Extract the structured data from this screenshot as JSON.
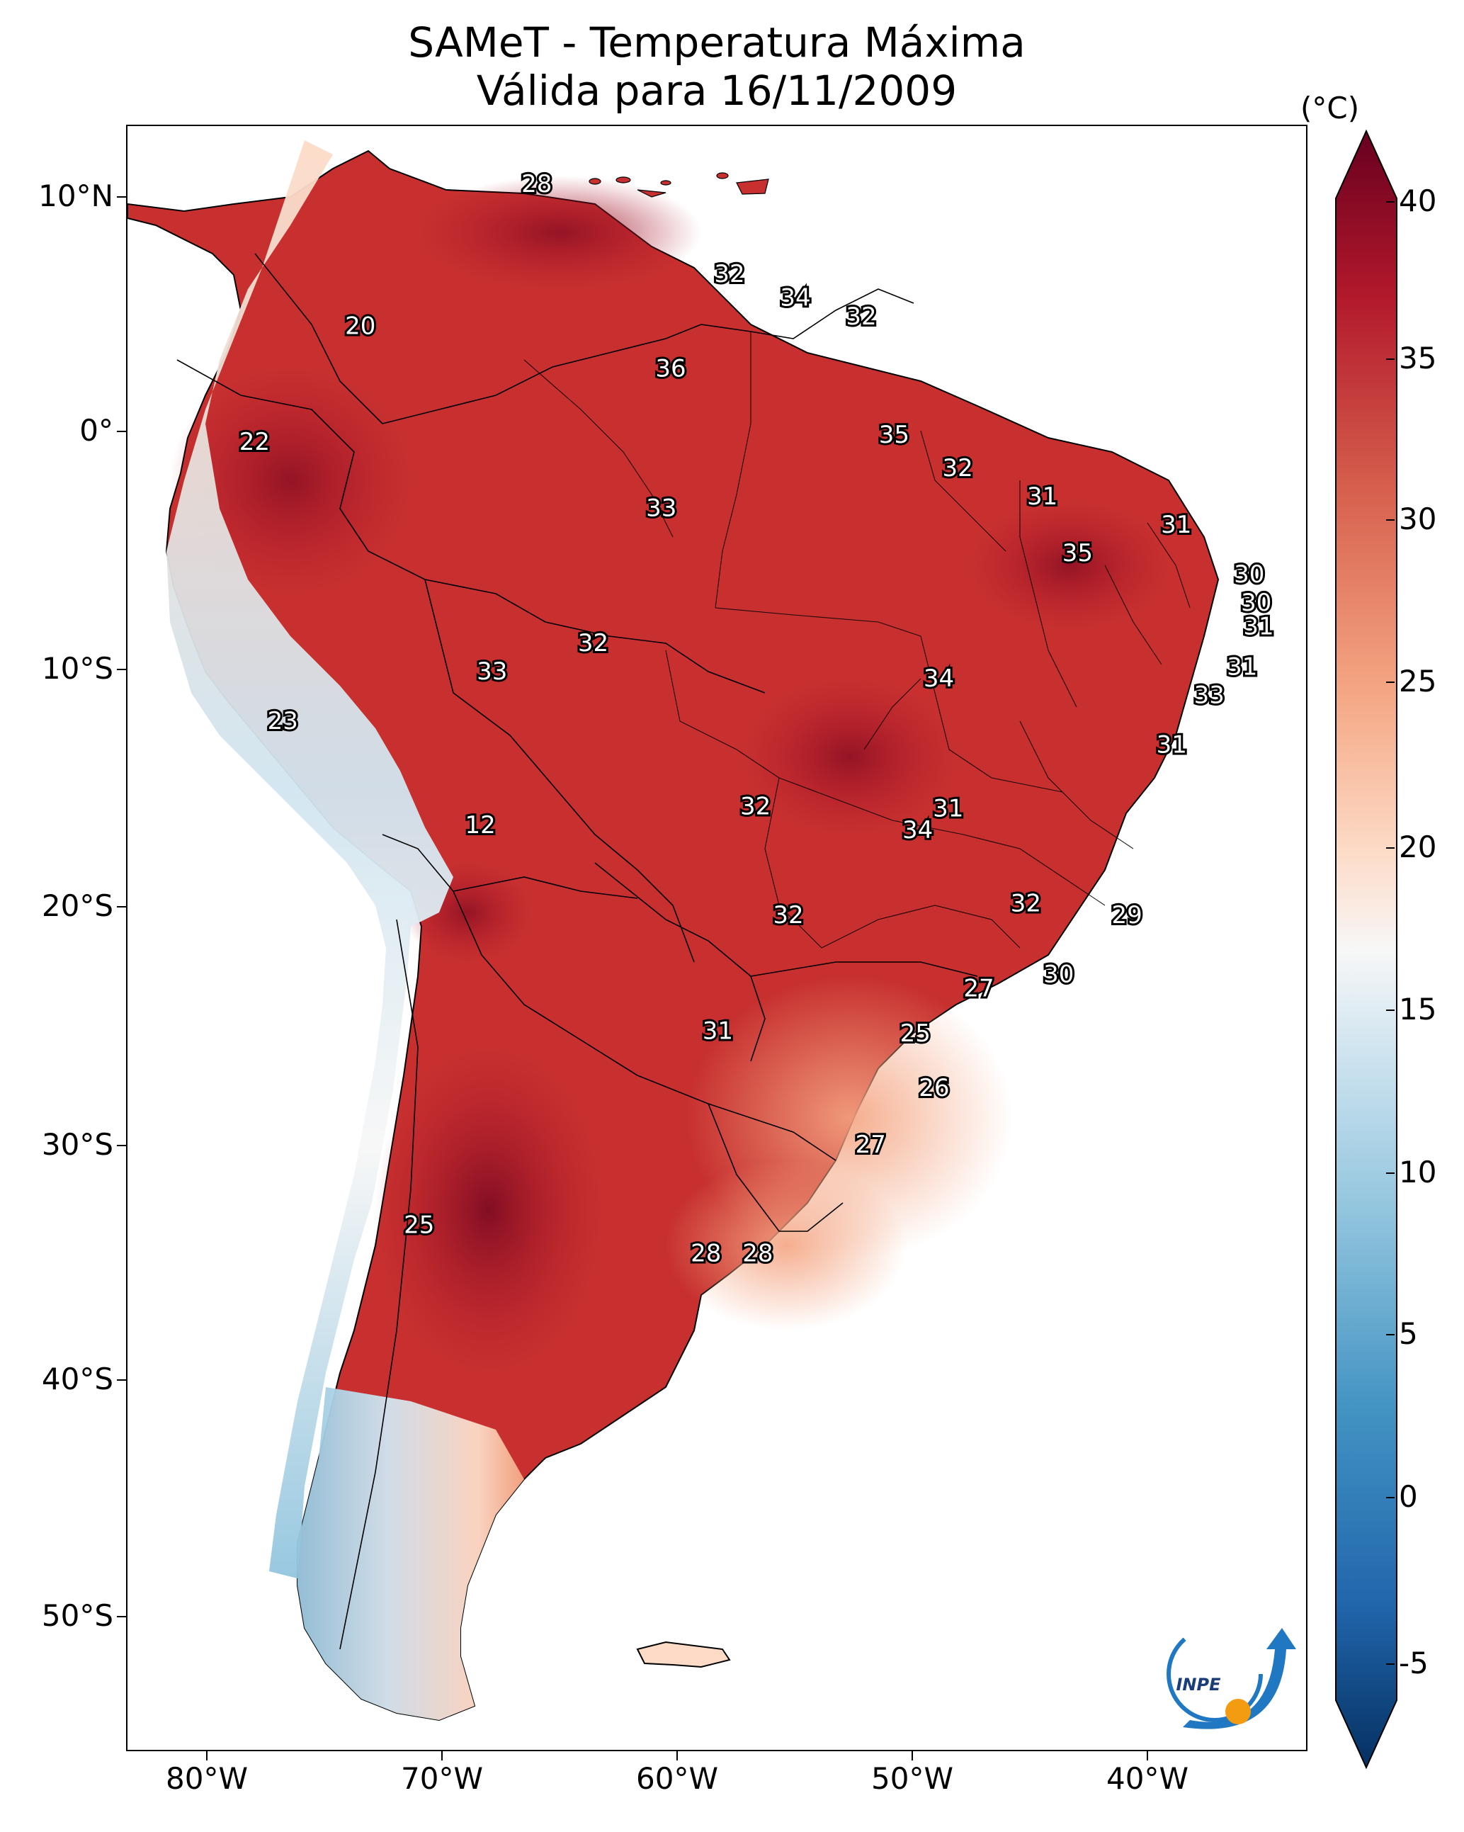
{
  "title_line1": "SAMeT - Temperatura Máxima",
  "title_line2": "Válida para 16/11/2009",
  "colorbar": {
    "unit": "(°C)",
    "ticks": [
      "40",
      "35",
      "30",
      "25",
      "20",
      "15",
      "10",
      "5",
      "0",
      "-5"
    ],
    "range": [
      -7,
      42
    ],
    "colors": {
      "max": "#67001f",
      "high": "#b2182b",
      "warm": "#d6604d",
      "mild": "#f4a582",
      "light": "#fddbc7",
      "neutral": "#f7f7f7",
      "cool": "#d1e5f0",
      "cold": "#92c5de",
      "colder": "#4393c3",
      "coldest": "#2166ac",
      "min": "#053061"
    }
  },
  "axes": {
    "lat_labels": [
      "10°N",
      "0°",
      "10°S",
      "20°S",
      "30°S",
      "40°S",
      "50°S"
    ],
    "lon_labels": [
      "80°W",
      "70°W",
      "60°W",
      "50°W",
      "40°W"
    ]
  },
  "isotherm_labels": [
    {
      "text": "28",
      "lon": -66.0,
      "lat": 10.6
    },
    {
      "text": "20",
      "lon": -73.5,
      "lat": 4.6
    },
    {
      "text": "22",
      "lon": -78.0,
      "lat": -0.3
    },
    {
      "text": "32",
      "lon": -57.8,
      "lat": 6.8
    },
    {
      "text": "34",
      "lon": -55.0,
      "lat": 5.8
    },
    {
      "text": "32",
      "lon": -52.2,
      "lat": 5.0
    },
    {
      "text": "36",
      "lon": -60.3,
      "lat": 2.8
    },
    {
      "text": "35",
      "lon": -50.8,
      "lat": 0.0
    },
    {
      "text": "32",
      "lon": -48.1,
      "lat": -1.4
    },
    {
      "text": "31",
      "lon": -44.5,
      "lat": -2.6
    },
    {
      "text": "33",
      "lon": -60.7,
      "lat": -3.1
    },
    {
      "text": "31",
      "lon": -38.8,
      "lat": -3.8
    },
    {
      "text": "35",
      "lon": -43.0,
      "lat": -5.0
    },
    {
      "text": "30",
      "lon": -35.7,
      "lat": -5.9
    },
    {
      "text": "30",
      "lon": -35.4,
      "lat": -7.1
    },
    {
      "text": "31",
      "lon": -35.3,
      "lat": -8.1
    },
    {
      "text": "32",
      "lon": -63.6,
      "lat": -8.8
    },
    {
      "text": "33",
      "lon": -67.9,
      "lat": -10.0
    },
    {
      "text": "31",
      "lon": -36.0,
      "lat": -9.8
    },
    {
      "text": "34",
      "lon": -48.9,
      "lat": -10.3
    },
    {
      "text": "33",
      "lon": -37.4,
      "lat": -11.0
    },
    {
      "text": "23",
      "lon": -76.8,
      "lat": -12.1
    },
    {
      "text": "31",
      "lon": -39.0,
      "lat": -13.1
    },
    {
      "text": "12",
      "lon": -68.4,
      "lat": -16.5
    },
    {
      "text": "32",
      "lon": -56.7,
      "lat": -15.7
    },
    {
      "text": "31",
      "lon": -48.5,
      "lat": -15.8
    },
    {
      "text": "34",
      "lon": -49.8,
      "lat": -16.7
    },
    {
      "text": "32",
      "lon": -45.2,
      "lat": -19.8
    },
    {
      "text": "32",
      "lon": -55.3,
      "lat": -20.3
    },
    {
      "text": "29",
      "lon": -40.9,
      "lat": -20.3
    },
    {
      "text": "30",
      "lon": -43.8,
      "lat": -22.8
    },
    {
      "text": "27",
      "lon": -47.2,
      "lat": -23.4
    },
    {
      "text": "31",
      "lon": -58.3,
      "lat": -25.2
    },
    {
      "text": "25",
      "lon": -49.9,
      "lat": -25.3
    },
    {
      "text": "26",
      "lon": -49.1,
      "lat": -27.6
    },
    {
      "text": "27",
      "lon": -51.8,
      "lat": -30.0
    },
    {
      "text": "25",
      "lon": -71.0,
      "lat": -33.4
    },
    {
      "text": "28",
      "lon": -58.8,
      "lat": -34.6
    },
    {
      "text": "28",
      "lon": -56.6,
      "lat": -34.6
    }
  ],
  "logo": {
    "text": "INPE"
  }
}
